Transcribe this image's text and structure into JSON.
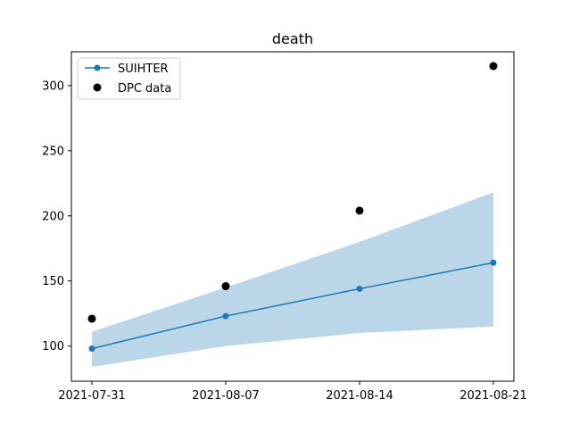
{
  "chart_data": {
    "type": "line",
    "title": "death",
    "xlabel": "",
    "ylabel": "",
    "x": [
      "2021-07-31",
      "2021-08-07",
      "2021-08-14",
      "2021-08-21"
    ],
    "x_ticks": [
      "2021-07-31",
      "2021-08-07",
      "2021-08-14",
      "2021-08-21"
    ],
    "y_ticks": [
      "100",
      "150",
      "200",
      "250",
      "300"
    ],
    "ylim": [
      73,
      326
    ],
    "grid": false,
    "legend_position": "top-left",
    "series": [
      {
        "name": "SUIHTER",
        "kind": "line",
        "color": "#1f77b4",
        "values": [
          98,
          123,
          144,
          164
        ],
        "band_lower": [
          84,
          100,
          110,
          115
        ],
        "band_upper": [
          111,
          145,
          180,
          218
        ],
        "band_color": "#1f77b4"
      },
      {
        "name": "DPC data",
        "kind": "scatter",
        "color": "#000000",
        "values": [
          121,
          146,
          204,
          315
        ]
      }
    ]
  }
}
